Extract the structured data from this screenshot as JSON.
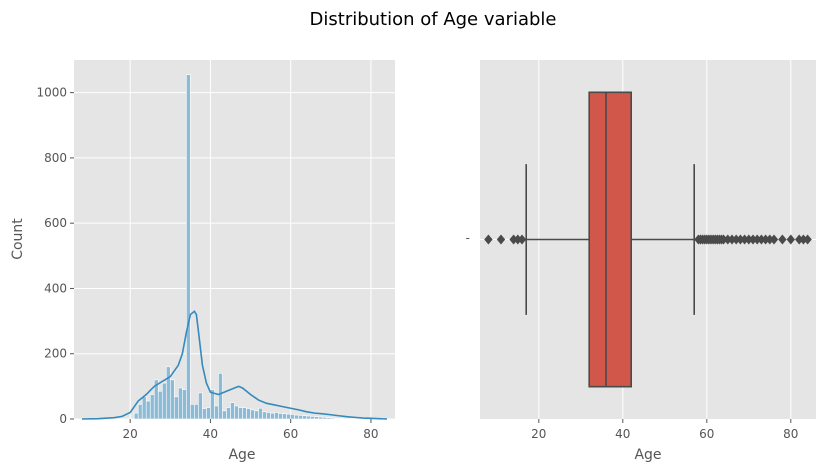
{
  "suptitle": "Distribution of Age variable",
  "colors": {
    "panel_bg": "#e5e5e5",
    "grid": "#ffffff",
    "hist_bar": "#8dbbd6",
    "kde_line": "#348abd",
    "box_fill": "#d0574a",
    "box_line": "#4a4a4a",
    "tick_text": "#555555"
  },
  "chart_data": [
    {
      "type": "bar",
      "subtype": "histogram_with_kde",
      "title": "",
      "xlabel": "Age",
      "ylabel": "Count",
      "xlim": [
        6,
        86
      ],
      "ylim": [
        0,
        1100
      ],
      "xticks": [
        20,
        40,
        60,
        80
      ],
      "yticks": [
        0,
        200,
        400,
        600,
        800,
        1000
      ],
      "grid": true,
      "bin_edges": [
        21,
        22,
        23,
        24,
        25,
        26,
        27,
        28,
        29,
        30,
        31,
        32,
        33,
        34,
        35,
        36,
        37,
        38,
        39,
        40,
        41,
        42,
        43,
        44,
        45,
        46,
        47,
        48,
        49,
        50,
        51,
        52,
        53,
        54,
        55,
        56,
        57,
        58,
        59,
        60,
        61,
        62,
        63,
        64,
        65,
        66,
        67,
        68,
        69,
        70,
        71,
        72,
        73,
        74
      ],
      "values": [
        18,
        45,
        68,
        55,
        75,
        120,
        85,
        110,
        160,
        120,
        68,
        95,
        90,
        1055,
        45,
        45,
        80,
        32,
        35,
        90,
        40,
        140,
        25,
        35,
        50,
        40,
        35,
        35,
        32,
        28,
        25,
        33,
        22,
        20,
        18,
        20,
        17,
        16,
        15,
        14,
        12,
        11,
        10,
        9,
        8,
        7,
        6,
        5,
        4,
        3,
        2,
        2,
        1
      ],
      "kde": {
        "x": [
          8,
          12,
          16,
          18,
          20,
          22,
          24,
          26,
          28,
          30,
          32,
          33,
          34,
          35,
          36,
          36.5,
          37,
          38,
          39,
          40,
          42,
          44,
          46,
          47,
          48,
          50,
          52,
          54,
          56,
          58,
          60,
          62,
          64,
          66,
          68,
          70,
          72,
          74,
          76,
          78,
          80,
          82,
          84
        ],
        "y": [
          0,
          1,
          4,
          8,
          20,
          55,
          75,
          100,
          115,
          130,
          165,
          200,
          265,
          320,
          330,
          320,
          270,
          165,
          110,
          82,
          75,
          85,
          95,
          100,
          95,
          75,
          58,
          48,
          43,
          38,
          33,
          28,
          22,
          18,
          16,
          13,
          10,
          7,
          5,
          3,
          2,
          1,
          0
        ]
      }
    },
    {
      "type": "box",
      "title": "",
      "xlabel": "Age",
      "xlim": [
        6,
        86
      ],
      "xticks": [
        20,
        40,
        60,
        80
      ],
      "yticks": [
        "-"
      ],
      "grid": true,
      "whisker_low": 17,
      "q1": 32,
      "median": 36,
      "q3": 42,
      "whisker_high": 57,
      "outliers": [
        8,
        11,
        14,
        15,
        16,
        58,
        58.5,
        59,
        59.5,
        60,
        60.5,
        61,
        61.5,
        62,
        62.5,
        63,
        63.5,
        64,
        65,
        66,
        67,
        68,
        69,
        70,
        71,
        72,
        73,
        74,
        75,
        76,
        78,
        80,
        82,
        83,
        84
      ]
    }
  ]
}
